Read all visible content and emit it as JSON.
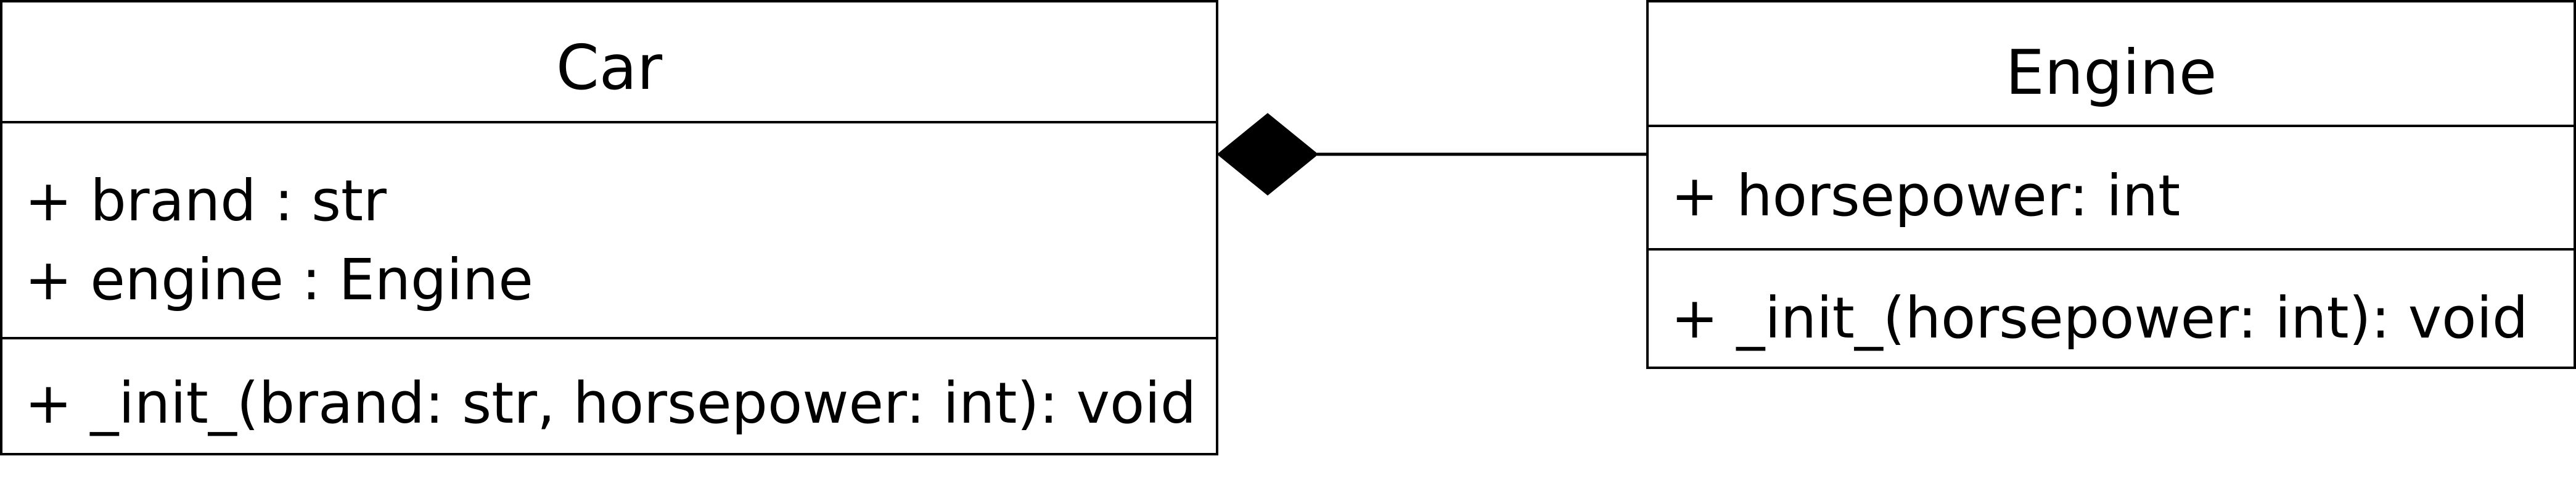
{
  "diagram": {
    "classes": [
      {
        "id": "car",
        "name": "Car",
        "attributes": [
          "+ brand : str",
          "+ engine : Engine"
        ],
        "operations": [
          "+ _init_(brand: str, horsepower: int): void"
        ]
      },
      {
        "id": "engine",
        "name": "Engine",
        "attributes": [
          "+ horsepower: int"
        ],
        "operations": [
          "+ _init_(horsepower: int): void"
        ]
      }
    ],
    "relationship": {
      "type": "composition",
      "whole": "Car",
      "part": "Engine",
      "color": "#000000"
    }
  }
}
